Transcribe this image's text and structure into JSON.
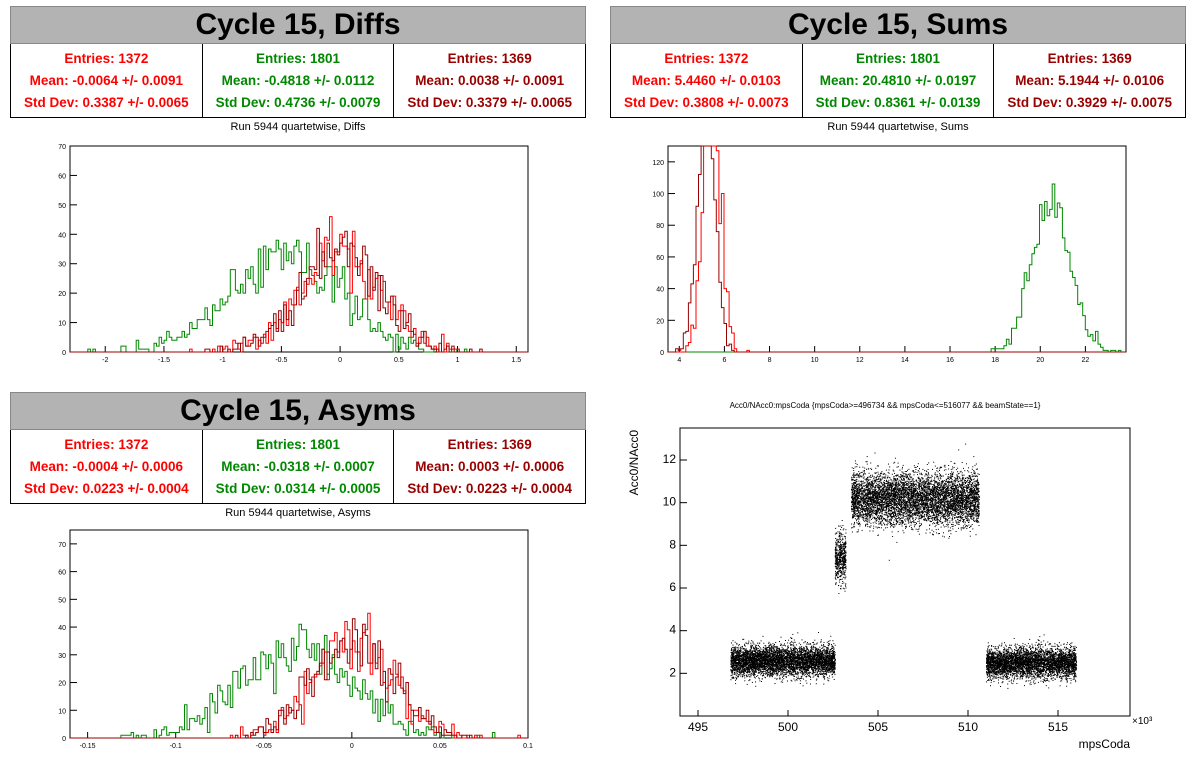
{
  "colors": {
    "red": "#ff0000",
    "green": "#008800",
    "darkred": "#990000"
  },
  "panels": [
    {
      "title": "Cycle 15, Diffs",
      "stats": [
        {
          "entries": "Entries: 1372",
          "mean": "Mean: -0.0064 +/- 0.0091",
          "std": "Std Dev: 0.3387 +/- 0.0065",
          "color": "red"
        },
        {
          "entries": "Entries: 1801",
          "mean": "Mean: -0.4818 +/- 0.0112",
          "std": "Std Dev: 0.4736 +/- 0.0079",
          "color": "green"
        },
        {
          "entries": "Entries: 1369",
          "mean": "Mean: 0.0038 +/- 0.0091",
          "std": "Std Dev: 0.3379 +/- 0.0065",
          "color": "darkred"
        }
      ],
      "subtitle": "Run 5944 quartetwise, Diffs"
    },
    {
      "title": "Cycle 15, Sums",
      "stats": [
        {
          "entries": "Entries: 1372",
          "mean": "Mean: 5.4460 +/- 0.0103",
          "std": "Std Dev: 0.3808 +/- 0.0073",
          "color": "red"
        },
        {
          "entries": "Entries: 1801",
          "mean": "Mean: 20.4810 +/- 0.0197",
          "std": "Std Dev: 0.8361 +/- 0.0139",
          "color": "green"
        },
        {
          "entries": "Entries: 1369",
          "mean": "Mean: 5.1944 +/- 0.0106",
          "std": "Std Dev: 0.3929 +/- 0.0075",
          "color": "darkred"
        }
      ],
      "subtitle": "Run 5944 quartetwise, Sums"
    },
    {
      "title": "Cycle 15, Asyms",
      "stats": [
        {
          "entries": "Entries: 1372",
          "mean": "Mean: -0.0004 +/- 0.0006",
          "std": "Std Dev: 0.0223 +/- 0.0004",
          "color": "red"
        },
        {
          "entries": "Entries: 1801",
          "mean": "Mean: -0.0318 +/- 0.0007",
          "std": "Std Dev: 0.0314 +/- 0.0005",
          "color": "green"
        },
        {
          "entries": "Entries: 1369",
          "mean": "Mean: 0.0003 +/- 0.0006",
          "std": "Std Dev: 0.0223 +/- 0.0004",
          "color": "darkred"
        }
      ],
      "subtitle": "Run 5944 quartetwise, Asyms"
    }
  ],
  "chart_data": [
    {
      "type": "histogram",
      "xlim": [
        -2.3,
        1.6
      ],
      "ylim": [
        0,
        70
      ],
      "xticks": [
        "-2",
        "-1.5",
        "-1",
        "-0.5",
        "0",
        "0.5",
        "1",
        "1.5"
      ],
      "yticks": [
        "0",
        "10",
        "20",
        "30",
        "40",
        "50",
        "60",
        "70"
      ],
      "series": [
        {
          "color": "green",
          "mean": -0.4818,
          "std": 0.4736,
          "entries": 1801
        },
        {
          "color": "red",
          "mean": -0.0064,
          "std": 0.3387,
          "entries": 1372
        },
        {
          "color": "darkred",
          "mean": 0.0038,
          "std": 0.3379,
          "entries": 1369
        }
      ]
    },
    {
      "type": "histogram",
      "xlim": [
        3.5,
        23.8
      ],
      "ylim": [
        0,
        130
      ],
      "xticks": [
        "4",
        "6",
        "8",
        "10",
        "12",
        "14",
        "16",
        "18",
        "20",
        "22"
      ],
      "yticks": [
        "0",
        "20",
        "40",
        "60",
        "80",
        "100",
        "120"
      ],
      "series": [
        {
          "color": "green",
          "mean": 20.481,
          "std": 0.8361,
          "entries": 1801
        },
        {
          "color": "red",
          "mean": 5.446,
          "std": 0.3808,
          "entries": 1372
        },
        {
          "color": "darkred",
          "mean": 5.1944,
          "std": 0.3929,
          "entries": 1369
        }
      ]
    },
    {
      "type": "histogram",
      "xlim": [
        -0.16,
        0.1
      ],
      "ylim": [
        0,
        75
      ],
      "xticks": [
        "-0.15",
        "-0.1",
        "-0.05",
        "0",
        "0.05",
        "0.1"
      ],
      "yticks": [
        "0",
        "10",
        "20",
        "30",
        "40",
        "50",
        "60",
        "70"
      ],
      "series": [
        {
          "color": "green",
          "mean": -0.0318,
          "std": 0.0314,
          "entries": 1801
        },
        {
          "color": "red",
          "mean": -0.0004,
          "std": 0.0223,
          "entries": 1372
        },
        {
          "color": "darkred",
          "mean": 0.0003,
          "std": 0.0223,
          "entries": 1369
        }
      ]
    },
    {
      "type": "scatter",
      "title": "Acc0/NAcc0:mpsCoda {mpsCoda>=496734 && mpsCoda<=516077 && beamState==1}",
      "xlabel": "mpsCoda",
      "ylabel": "Acc0/NAcc0",
      "xexp": "×10³",
      "xlim": [
        494,
        519
      ],
      "ylim": [
        0,
        13.5
      ],
      "xticks": [
        "495",
        "500",
        "505",
        "510",
        "515"
      ],
      "yticks": [
        "2",
        "4",
        "6",
        "8",
        "10",
        "12"
      ],
      "clusters": [
        {
          "x": [
            496.8,
            502.6
          ],
          "y_center": 2.6,
          "y_spread": 0.35
        },
        {
          "x": [
            502.6,
            503.2
          ],
          "y_center": 7.4,
          "y_spread": 0.6
        },
        {
          "x": [
            503.5,
            510.6
          ],
          "y_center": 10.2,
          "y_spread": 0.6
        },
        {
          "x": [
            511,
            516
          ],
          "y_center": 2.5,
          "y_spread": 0.35
        }
      ]
    }
  ]
}
